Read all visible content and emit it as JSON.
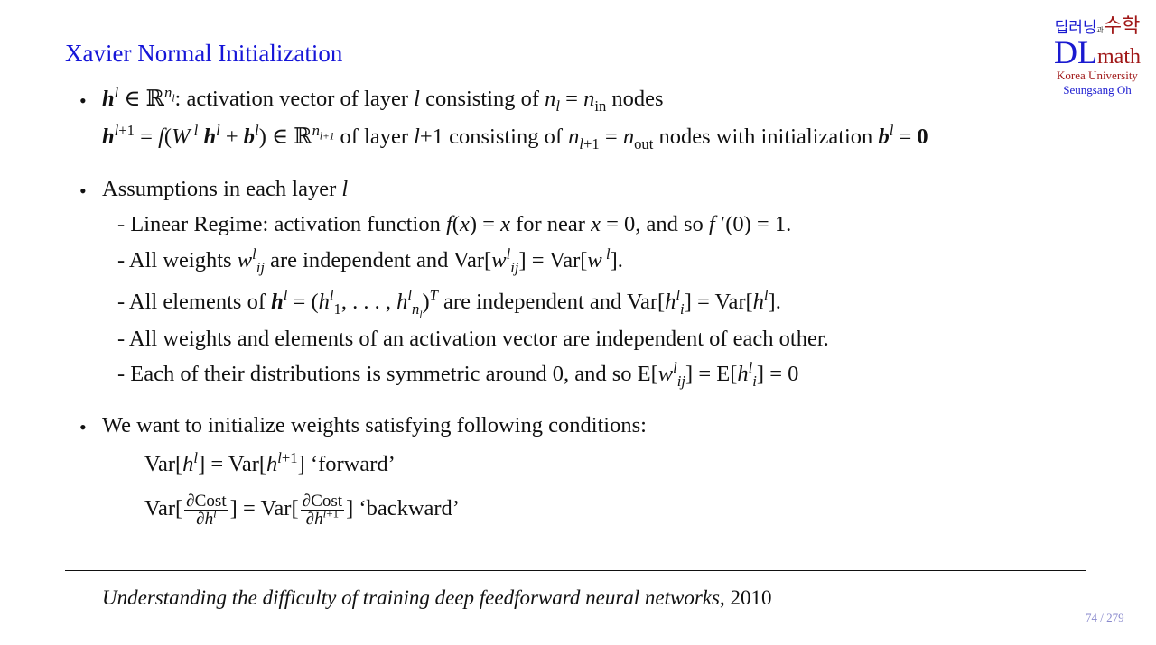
{
  "slide": {
    "title": "Xavier Normal Initialization",
    "logo": {
      "korean_left": "딥러닝",
      "korean_connector": "과",
      "korean_right": "수학",
      "dl": "DL",
      "math": "math",
      "university": "Korea University",
      "author": "Seungsang Oh"
    },
    "bullet_symbol": "•",
    "lines": [
      "[b]h[/b]^{[i]l[/i]} ∈ ℝ^{[i]n_{l}[/i]}: activation vector of layer [i]l[/i] consisting of [i]n[/i]_{[i]l[/i]} = [i]n[/i]_{in} nodes",
      "[b]h[/b]^{[i]l[/i]+1} = [i]f[/i]([i]W[/i]^{ [i]l[/i]} [b]h[/b]^{[i]l[/i]} + [b]b[/b]^{[i]l[/i]}) ∈ ℝ^{[i]n_{l+1}[/i]}  of layer [i]l[/i]+1 consisting of [i]n[/i]_{[i]l[/i]+1} = [i]n[/i]_{out} nodes with initialization [b]b[/b]^{[i]l[/i]} = [B]0[/B]",
      "Assumptions in each layer [i]l[/i]",
      "- Linear Regime: activation function [i]f[/i]([i]x[/i]) = [i]x[/i]  for near [i]x[/i] = 0, and so [i]f[/i] ′(0) = 1.",
      "- All weights [i]w[/i]^{[i]l[/i]}_{[i]ij[/i]} are independent and  Var[[i]w[/i]^{[i]l[/i]}_{[i]ij[/i]}] = Var[[i]w[/i]^{ [i]l[/i]}].",
      "- All elements of [b]h[/b]^{[i]l[/i]} = ([i]h[/i]^{[i]l[/i]}_{1}, . . . , [i]h[/i]^{[i]l[/i]}_{[i]n_{l}[/i]})^{[i]T[/i]} are independent and  Var[[i]h[/i]^{[i]l[/i]}_{[i]i[/i]}] = Var[[i]h[/i]^{[i]l[/i]}].",
      "- All weights and elements of an activation vector are independent of each other.",
      "- Each of their distributions is symmetric around 0, and so  E[[i]w[/i]^{[i]l[/i]}_{[i]ij[/i]}] = E[[i]h[/i]^{[i]l[/i]}_{[i]i[/i]}] = 0",
      "We want to initialize weights satisfying following conditions:",
      "Var[[i]h[/i]^{[i]l[/i]}] = Var[[i]h[/i]^{[i]l[/i]+1}]  ‘forward’",
      "Var[[f]∂Cost|∂[i]h[/i]^{[i]l[/i]}[/f]] = Var[[f]∂Cost|∂[i]h[/i]^{[i]l[/i]+1}[/f]]  ‘backward’"
    ],
    "citation": {
      "title": "Understanding the difficulty of training deep feedforward neural networks",
      "year": ",  2010"
    },
    "page": "74  / 279"
  }
}
